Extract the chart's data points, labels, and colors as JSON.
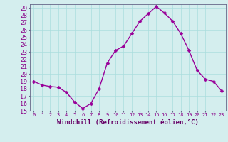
{
  "x": [
    0,
    1,
    2,
    3,
    4,
    5,
    6,
    7,
    8,
    9,
    10,
    11,
    12,
    13,
    14,
    15,
    16,
    17,
    18,
    19,
    20,
    21,
    22,
    23
  ],
  "y": [
    19.0,
    18.5,
    18.3,
    18.2,
    17.5,
    16.2,
    15.3,
    16.0,
    18.0,
    21.5,
    23.2,
    23.8,
    25.5,
    27.2,
    28.2,
    29.2,
    28.3,
    27.2,
    25.5,
    23.2,
    20.5,
    19.3,
    19.0,
    17.7
  ],
  "line_color": "#990099",
  "marker": "D",
  "marker_size": 2.5,
  "xlabel": "Windchill (Refroidissement éolien,°C)",
  "xlabel_fontsize": 6.5,
  "xlabel_color": "#660066",
  "xtick_labels": [
    "0",
    "1",
    "2",
    "3",
    "4",
    "5",
    "6",
    "7",
    "8",
    "9",
    "10",
    "11",
    "12",
    "13",
    "14",
    "15",
    "16",
    "17",
    "18",
    "19",
    "20",
    "21",
    "22",
    "23"
  ],
  "ylim": [
    15,
    29.5
  ],
  "yticks": [
    15,
    16,
    17,
    18,
    19,
    20,
    21,
    22,
    23,
    24,
    25,
    26,
    27,
    28,
    29
  ],
  "ytick_fontsize": 6.0,
  "xtick_fontsize": 5.0,
  "grid_color": "#aadddd",
  "background_color": "#d4eeee",
  "tick_color": "#880088",
  "line_width": 1.0
}
